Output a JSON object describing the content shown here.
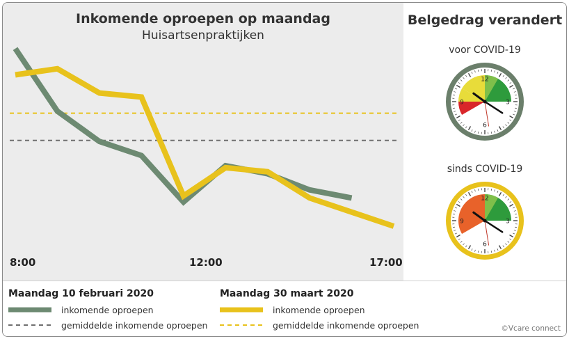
{
  "chart_data": {
    "type": "line",
    "title": "Inkomende oproepen op maandag",
    "subtitle": "Huisartsenpraktijken",
    "x_tick_labels": [
      "8:00",
      "12:00",
      "17:00"
    ],
    "x_hours": [
      8,
      9,
      10,
      11,
      12,
      13,
      14,
      15,
      16,
      17
    ],
    "x_range": [
      8,
      17
    ],
    "y_range": [
      0,
      100
    ],
    "grid": false,
    "series": [
      {
        "name": "inkomende oproepen",
        "group": "Maandag 10 februari 2020",
        "color": "#6d8a72",
        "values": [
          98,
          67,
          52,
          45,
          22,
          40,
          36,
          28,
          24,
          null
        ]
      },
      {
        "name": "inkomende oproepen",
        "group": "Maandag 30 maart 2020",
        "color": "#e8c21c",
        "values": [
          85,
          88,
          76,
          74,
          25,
          39,
          37,
          24,
          null,
          10
        ]
      }
    ],
    "series_x_end": [
      null,
      null
    ],
    "averages": [
      {
        "name": "gemiddelde inkomende oproepen",
        "group": "Maandag 10 februari 2020",
        "color": "#6f6f6f",
        "value": 52.5
      },
      {
        "name": "gemiddelde inkomende oproepen",
        "group": "Maandag 30 maart 2020",
        "color": "#e8c21c",
        "value": 66
      }
    ]
  },
  "right_panel": {
    "title": "Belgedrag verandert",
    "clock_before": {
      "label": "voor COVID-19",
      "ring_color": "#6b7f6b",
      "numbers": [
        "12",
        "3",
        "6",
        "9"
      ],
      "sectors": [
        {
          "color": "#2e9b3c",
          "from_hour": 0,
          "to_hour": 3
        },
        {
          "color": "#7fbf4a",
          "from_hour": 0,
          "to_hour": 1
        },
        {
          "color": "#e8dc3a",
          "from_hour": 10,
          "to_hour": 12
        },
        {
          "color": "#e8dc3a",
          "from_hour": 9,
          "to_hour": 10
        },
        {
          "color": "#d9262a",
          "from_hour": 8,
          "to_hour": 9
        }
      ]
    },
    "clock_after": {
      "label": "sinds COVID-19",
      "ring_color": "#e8c21c",
      "numbers": [
        "12",
        "3",
        "6",
        "9"
      ],
      "sectors": [
        {
          "color": "#2e9b3c",
          "from_hour": 0,
          "to_hour": 3
        },
        {
          "color": "#7fbf4a",
          "from_hour": 0,
          "to_hour": 1
        },
        {
          "color": "#e8622a",
          "from_hour": 8,
          "to_hour": 12
        }
      ]
    }
  },
  "legend": {
    "left": {
      "heading": "Maandag 10 februari 2020",
      "solid_label": "inkomende oproepen",
      "dashed_label": "gemiddelde inkomende oproepen",
      "solid_color": "#6d8a72",
      "dashed_color": "#6f6f6f"
    },
    "right": {
      "heading": "Maandag 30 maart 2020",
      "solid_label": "inkomende oproepen",
      "dashed_label": "gemiddelde inkomende oproepen",
      "solid_color": "#e8c21c",
      "dashed_color": "#e8c21c"
    }
  },
  "copyright": "©Vcare connect"
}
